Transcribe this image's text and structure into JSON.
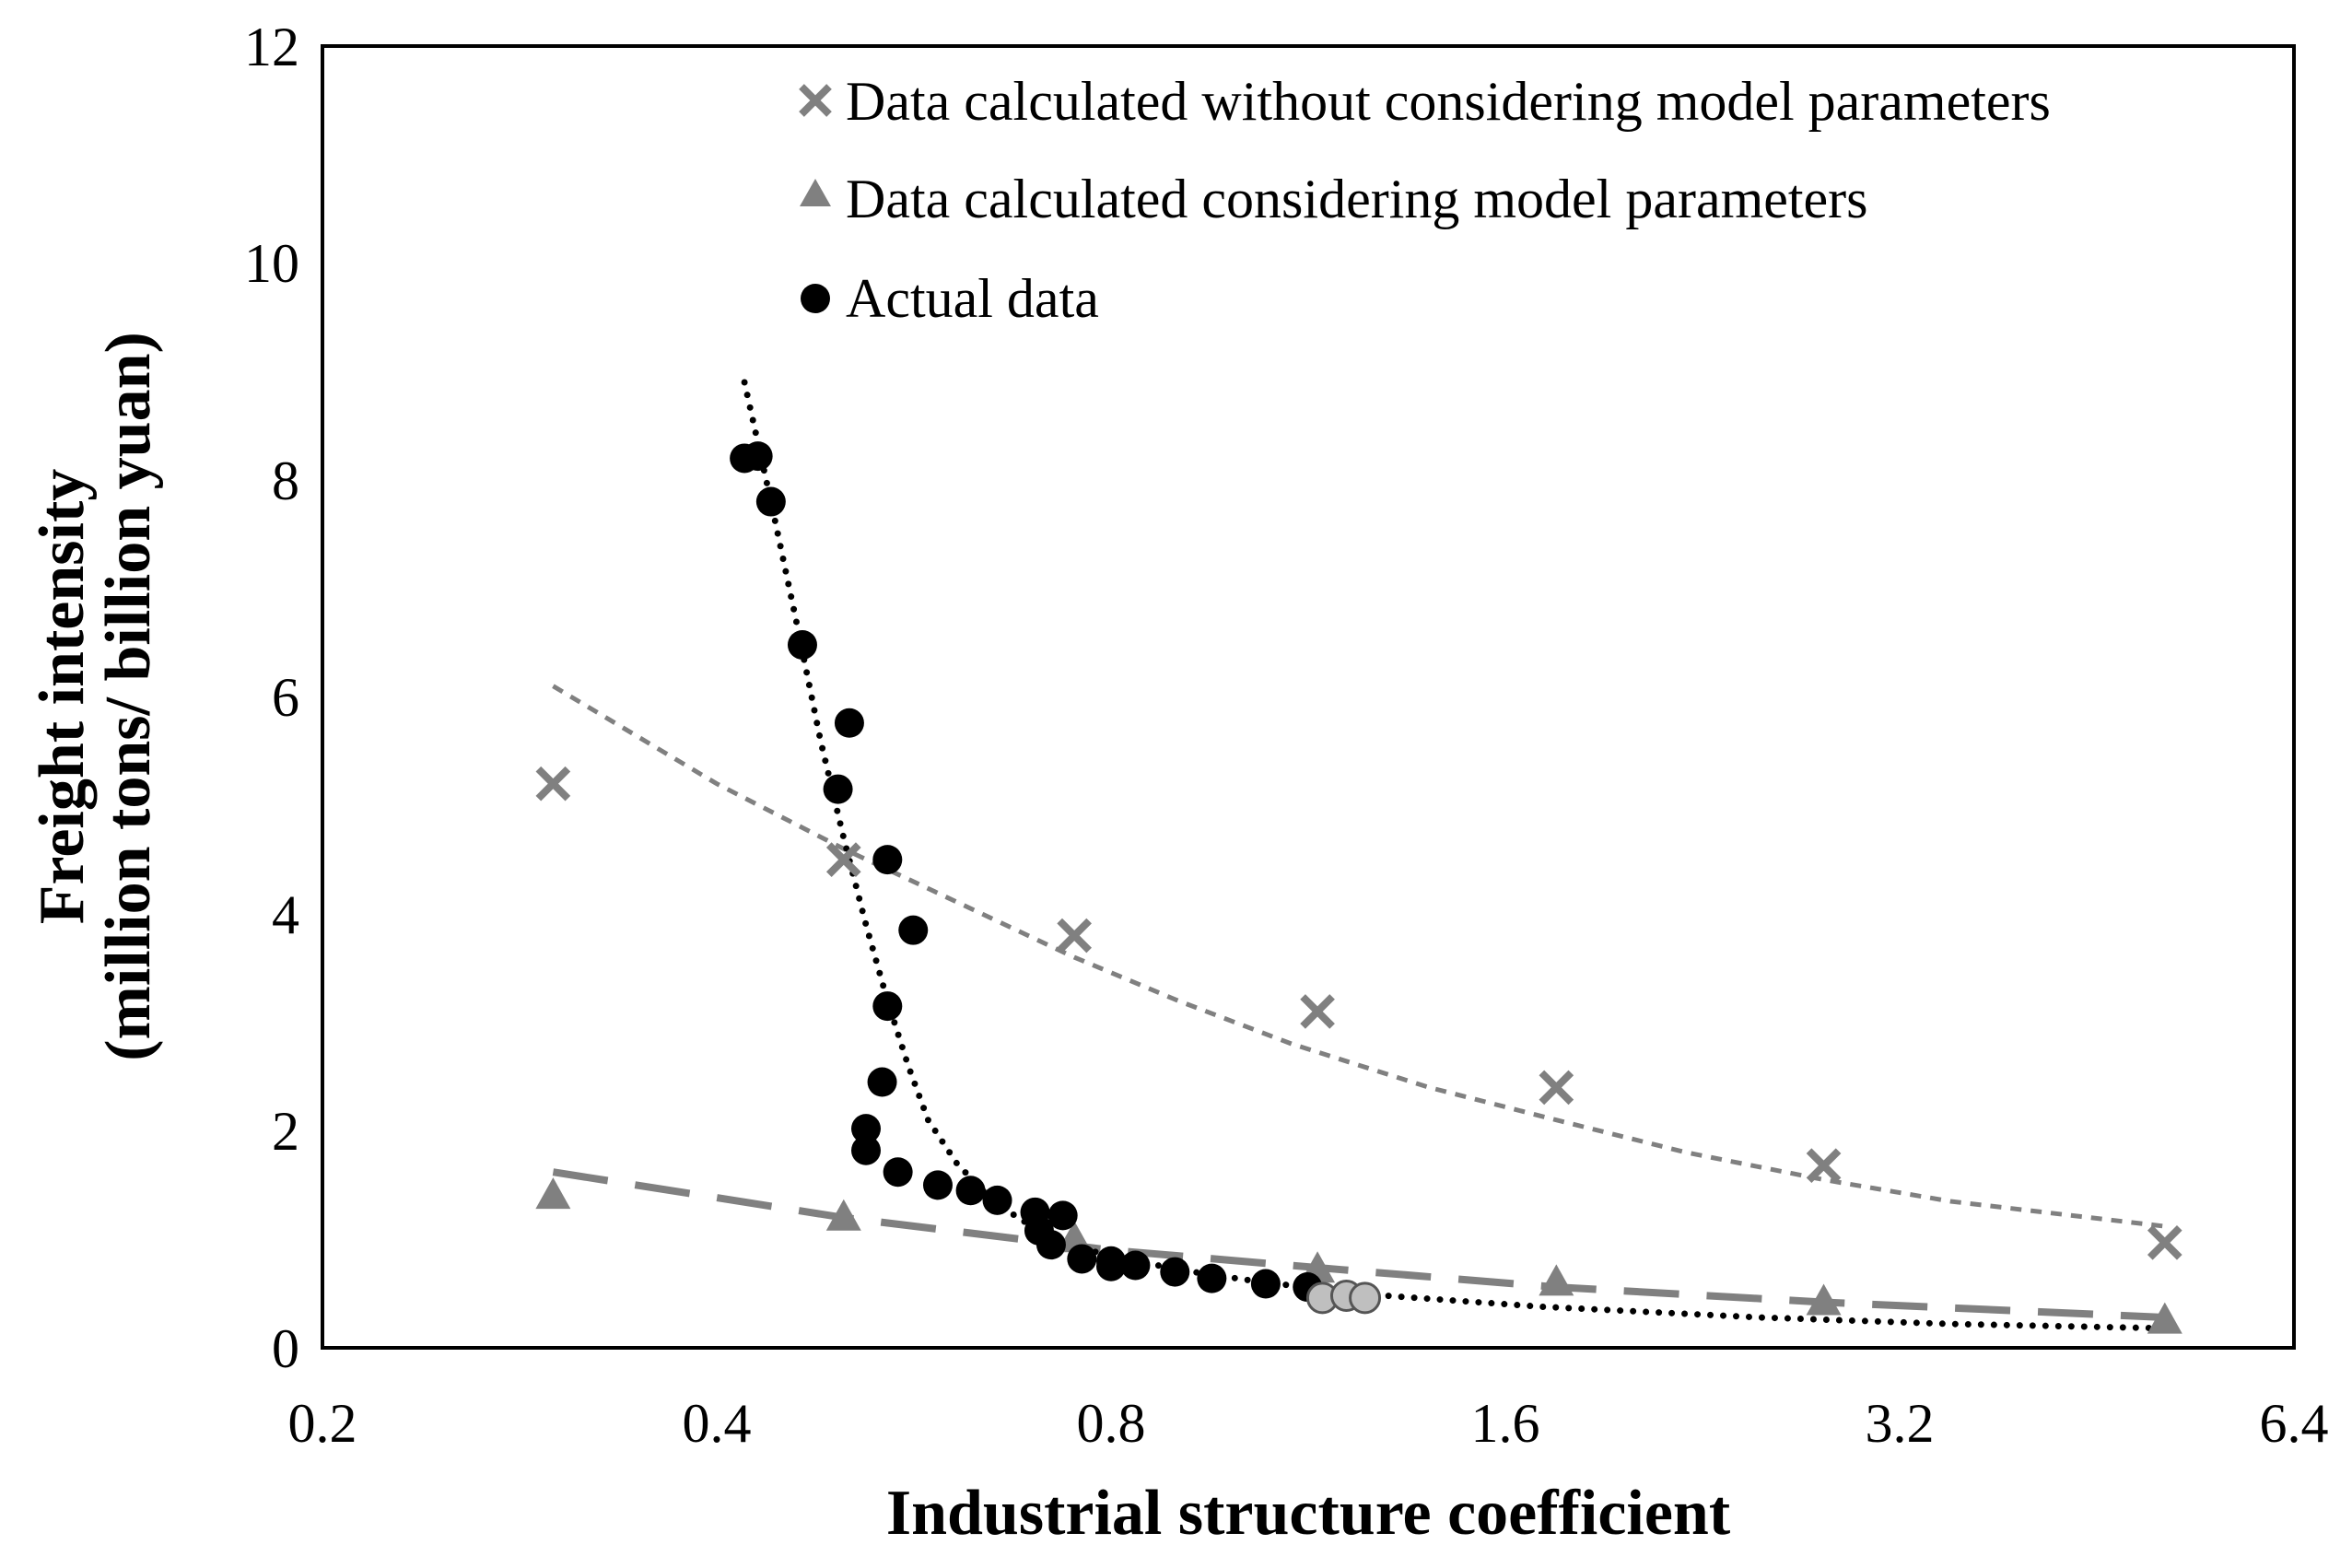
{
  "chart_data": {
    "type": "scatter",
    "title": "",
    "xlabel": "Industrial structure coefficient",
    "ylabel_line1": "Freight intensity",
    "ylabel_line2": "(million tons/ billion yuan)",
    "x_scale": "log2",
    "xlim": [
      0.2,
      6.4
    ],
    "ylim": [
      0,
      12
    ],
    "x_ticks": [
      0.2,
      0.4,
      0.8,
      1.6,
      3.2,
      6.4
    ],
    "x_tick_labels": [
      "0.2",
      "0.4",
      "0.8",
      "1.6",
      "3.2",
      "6.4"
    ],
    "y_ticks": [
      0,
      2,
      4,
      6,
      8,
      10,
      12
    ],
    "y_tick_labels": [
      "0",
      "2",
      "4",
      "6",
      "8",
      "10",
      "12"
    ],
    "legend_position": "top-right",
    "colors": {
      "gray": "#808080",
      "black": "#000000",
      "light_gray": "#bfbfbf"
    },
    "series": [
      {
        "name": "Data calculated without considering model parameters",
        "marker": "x",
        "color": "#808080",
        "points": [
          {
            "x": 0.3,
            "y": 5.2
          },
          {
            "x": 0.5,
            "y": 4.5
          },
          {
            "x": 0.75,
            "y": 3.8
          },
          {
            "x": 1.15,
            "y": 3.1
          },
          {
            "x": 1.75,
            "y": 2.4
          },
          {
            "x": 2.8,
            "y": 1.68
          },
          {
            "x": 5.1,
            "y": 0.97
          }
        ],
        "trend": {
          "style": "short-dash",
          "color": "#808080",
          "points": [
            {
              "x": 0.3,
              "y": 6.1
            },
            {
              "x": 0.4,
              "y": 5.2
            },
            {
              "x": 0.5,
              "y": 4.6
            },
            {
              "x": 0.6,
              "y": 4.15
            },
            {
              "x": 0.75,
              "y": 3.6
            },
            {
              "x": 0.9,
              "y": 3.2
            },
            {
              "x": 1.1,
              "y": 2.8
            },
            {
              "x": 1.4,
              "y": 2.4
            },
            {
              "x": 1.75,
              "y": 2.1
            },
            {
              "x": 2.2,
              "y": 1.8
            },
            {
              "x": 2.8,
              "y": 1.55
            },
            {
              "x": 3.5,
              "y": 1.35
            },
            {
              "x": 5.1,
              "y": 1.12
            }
          ]
        }
      },
      {
        "name": "Data calculated considering model parameters",
        "marker": "triangle",
        "color": "#808080",
        "points": [
          {
            "x": 0.3,
            "y": 1.4
          },
          {
            "x": 0.5,
            "y": 1.2
          },
          {
            "x": 0.75,
            "y": 1.0
          },
          {
            "x": 1.15,
            "y": 0.72
          },
          {
            "x": 1.75,
            "y": 0.6
          },
          {
            "x": 2.8,
            "y": 0.42
          },
          {
            "x": 5.1,
            "y": 0.25
          }
        ],
        "trend": {
          "style": "long-dash",
          "color": "#808080",
          "points": [
            {
              "x": 0.3,
              "y": 1.62
            },
            {
              "x": 0.5,
              "y": 1.2
            },
            {
              "x": 0.8,
              "y": 0.9
            },
            {
              "x": 1.2,
              "y": 0.72
            },
            {
              "x": 1.75,
              "y": 0.56
            },
            {
              "x": 2.8,
              "y": 0.42
            },
            {
              "x": 5.1,
              "y": 0.28
            }
          ]
        }
      },
      {
        "name": "Actual data",
        "marker": "circle",
        "color": "#000000",
        "points": [
          {
            "x": 0.42,
            "y": 8.2
          },
          {
            "x": 0.43,
            "y": 8.22
          },
          {
            "x": 0.44,
            "y": 7.8
          },
          {
            "x": 0.465,
            "y": 6.48
          },
          {
            "x": 0.505,
            "y": 5.76
          },
          {
            "x": 0.495,
            "y": 5.15
          },
          {
            "x": 0.54,
            "y": 4.5
          },
          {
            "x": 0.565,
            "y": 3.85
          },
          {
            "x": 0.54,
            "y": 3.15
          },
          {
            "x": 0.535,
            "y": 2.45
          },
          {
            "x": 0.52,
            "y": 2.02
          },
          {
            "x": 0.52,
            "y": 1.82
          },
          {
            "x": 0.55,
            "y": 1.62
          },
          {
            "x": 0.59,
            "y": 1.5
          },
          {
            "x": 0.625,
            "y": 1.45
          },
          {
            "x": 0.655,
            "y": 1.36
          },
          {
            "x": 0.7,
            "y": 1.25
          },
          {
            "x": 0.735,
            "y": 1.22
          },
          {
            "x": 0.705,
            "y": 1.08
          },
          {
            "x": 0.72,
            "y": 0.95
          },
          {
            "x": 0.76,
            "y": 0.82
          },
          {
            "x": 0.8,
            "y": 0.8
          },
          {
            "x": 0.8,
            "y": 0.75
          },
          {
            "x": 0.835,
            "y": 0.76
          },
          {
            "x": 0.895,
            "y": 0.7
          },
          {
            "x": 0.955,
            "y": 0.64
          },
          {
            "x": 1.05,
            "y": 0.59
          },
          {
            "x": 1.13,
            "y": 0.56
          }
        ],
        "gray_points": [
          {
            "x": 1.16,
            "y": 0.46
          },
          {
            "x": 1.21,
            "y": 0.48
          },
          {
            "x": 1.25,
            "y": 0.46
          }
        ],
        "trend": {
          "style": "dotted",
          "color": "#000000",
          "points": [
            {
              "x": 0.42,
              "y": 8.9
            },
            {
              "x": 0.44,
              "y": 7.8
            },
            {
              "x": 0.46,
              "y": 6.7
            },
            {
              "x": 0.48,
              "y": 5.6
            },
            {
              "x": 0.5,
              "y": 4.7
            },
            {
              "x": 0.52,
              "y": 3.9
            },
            {
              "x": 0.54,
              "y": 3.2
            },
            {
              "x": 0.56,
              "y": 2.6
            },
            {
              "x": 0.58,
              "y": 2.1
            },
            {
              "x": 0.61,
              "y": 1.7
            },
            {
              "x": 0.65,
              "y": 1.35
            },
            {
              "x": 0.7,
              "y": 1.1
            },
            {
              "x": 0.78,
              "y": 0.88
            },
            {
              "x": 0.9,
              "y": 0.72
            },
            {
              "x": 1.05,
              "y": 0.6
            },
            {
              "x": 1.3,
              "y": 0.48
            },
            {
              "x": 1.7,
              "y": 0.38
            },
            {
              "x": 2.5,
              "y": 0.28
            },
            {
              "x": 3.5,
              "y": 0.22
            },
            {
              "x": 5.1,
              "y": 0.18
            }
          ]
        }
      }
    ]
  }
}
